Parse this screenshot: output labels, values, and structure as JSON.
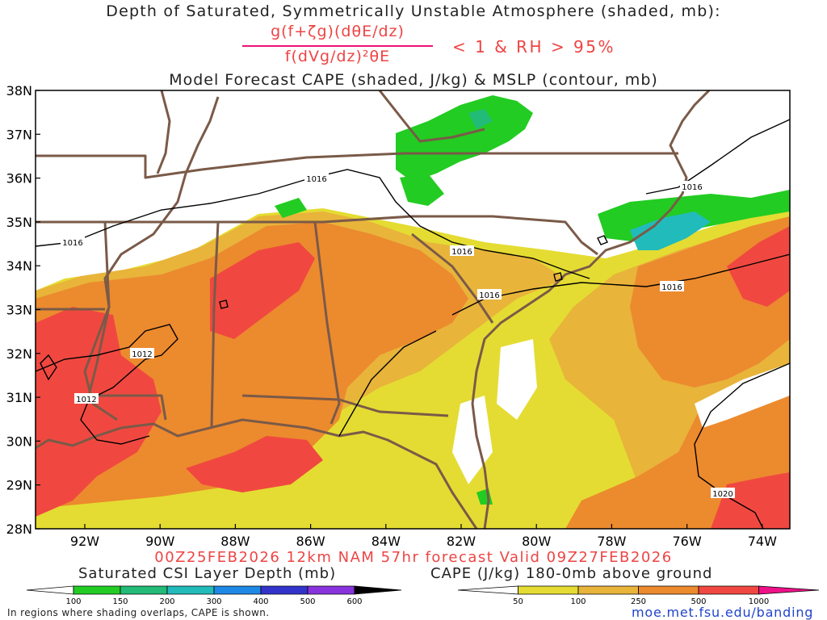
{
  "title": {
    "line1": "Depth of Saturated, Symmetrically Unstable Atmosphere (shaded, mb):",
    "numerator": "g(f+ζg)(dθE/dz)",
    "denominator": "f(dVg/dz)²θE",
    "condition": "< 1 & RH > 95%",
    "line3": "Model Forecast CAPE (shaded, J/kg) & MSLP (contour, mb)"
  },
  "footer": "00Z25FEB2026 12km NAM 57hr forecast Valid 09Z27FEB2026",
  "map": {
    "lat_labels": [
      "38N",
      "37N",
      "36N",
      "35N",
      "34N",
      "33N",
      "32N",
      "31N",
      "30N",
      "29N",
      "28N"
    ],
    "lon_labels": [
      "92W",
      "90W",
      "88W",
      "86W",
      "84W",
      "82W",
      "80W",
      "78W",
      "76W",
      "74W"
    ],
    "isobar_labels": [
      "1016",
      "1016",
      "1016",
      "1016",
      "1016",
      "1012",
      "1012",
      "1020"
    ],
    "colors": {
      "cape50": "#e4dc32",
      "cape100": "#e8b43a",
      "cape250": "#ec8a2e",
      "cape500": "#f04840",
      "csi100": "#22cc22",
      "csi150": "#22bb77",
      "csi200": "#22bbbb",
      "border": "#7a5a48"
    }
  },
  "legend_csi": {
    "label": "Saturated CSI Layer Depth (mb)",
    "ticks": [
      "100",
      "150",
      "200",
      "300",
      "400",
      "500",
      "600"
    ],
    "colors": [
      "#ffffff",
      "#22cc22",
      "#22bb77",
      "#22bbbb",
      "#1e88e5",
      "#3333cc",
      "#8833dd",
      "#000000"
    ]
  },
  "legend_cape": {
    "label": "CAPE (J/kg) 180-0mb above ground",
    "ticks": [
      "50",
      "100",
      "250",
      "500",
      "1000"
    ],
    "colors": [
      "#ffffff",
      "#e4dc32",
      "#e8b43a",
      "#ec8a2e",
      "#f04840",
      "#ee1188"
    ]
  },
  "note": "In regions where shading overlaps, CAPE is shown.",
  "url": "moe.met.fsu.edu/banding"
}
